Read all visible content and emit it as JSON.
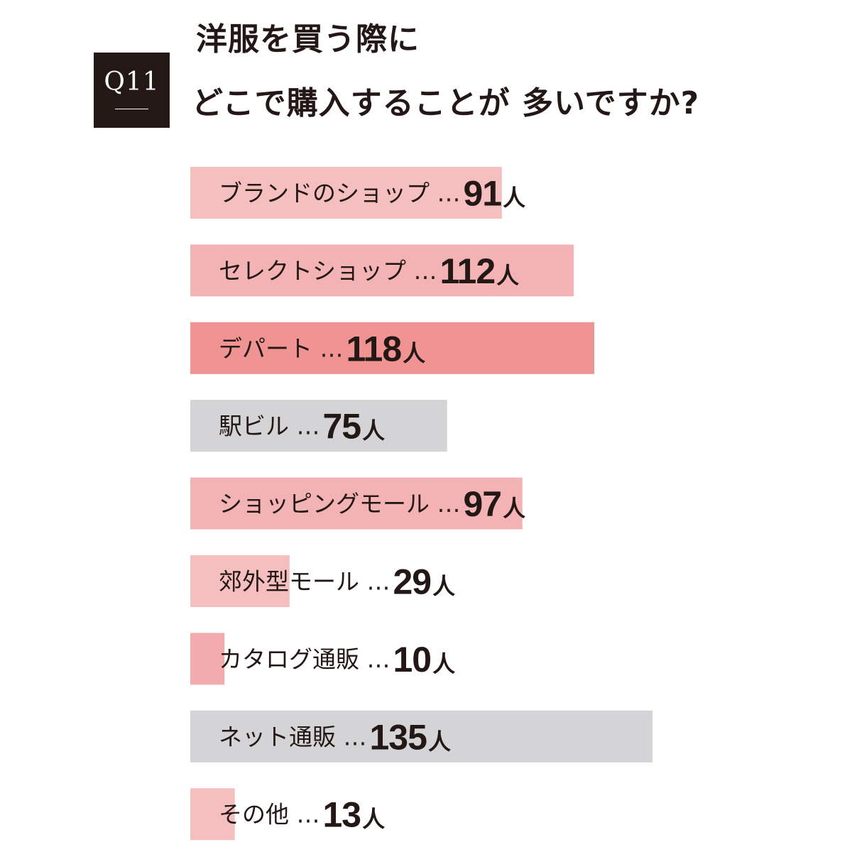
{
  "question": {
    "label": "Q11",
    "title_line1": "洋服を買う際に",
    "title_line2": "どこで購入することが 多いですか?"
  },
  "colors": {
    "pink_light": "#f5bfbf",
    "pink_mid": "#f3b3b4",
    "pink_strong": "#ef9393",
    "gray": "#d4d4d6",
    "text": "#231815"
  },
  "chart_data": {
    "type": "bar",
    "orientation": "horizontal",
    "separator": "…",
    "unit": "人",
    "categories": [
      "ブランドのショップ",
      "セレクトショップ",
      "デパート",
      "駅ビル",
      "ショッピングモール",
      "郊外型モール",
      "カタログ通販",
      "ネット通販",
      "その他"
    ],
    "values": [
      91,
      112,
      118,
      75,
      97,
      29,
      10,
      135,
      13
    ],
    "bar_colors": [
      "#f5bfbf",
      "#f3b3b4",
      "#ef9393",
      "#d4d4d6",
      "#f3b3b4",
      "#f5bfbf",
      "#f3acad",
      "#d4d4d6",
      "#f5bfbf"
    ],
    "xlim": [
      0,
      135
    ]
  }
}
